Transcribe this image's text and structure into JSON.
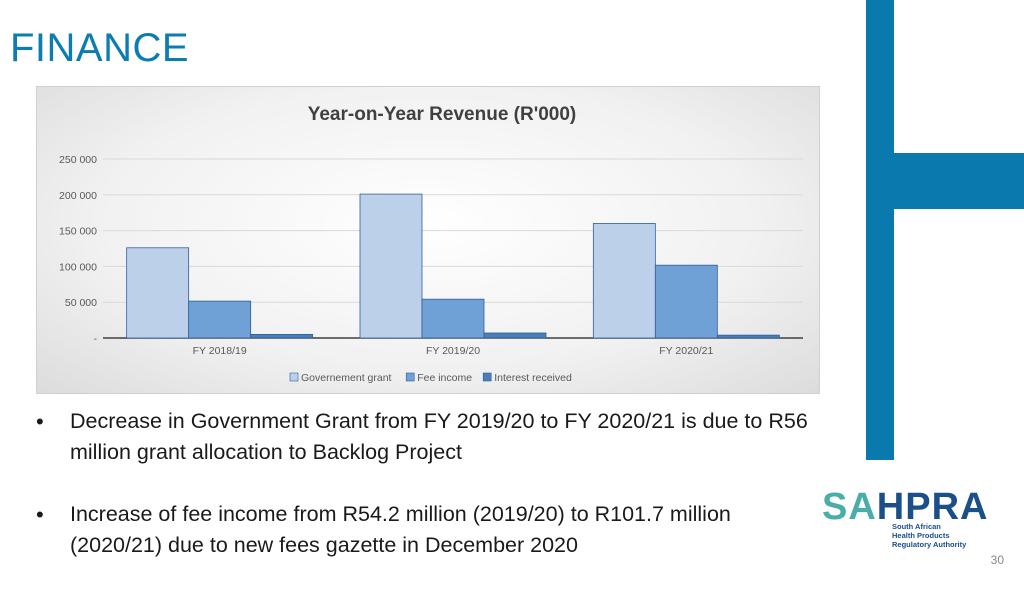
{
  "slide": {
    "title": "FINANCE",
    "page_number": "30"
  },
  "bullets": [
    "Decrease in Government Grant from FY 2019/20 to FY 2020/21 is due to R56 million grant allocation to Backlog Project",
    "Increase of fee income from R54.2 million (2019/20) to R101.7 million (2020/21) due to new fees gazette in December 2020"
  ],
  "logo": {
    "part1": "SA",
    "part2": "HPRA",
    "line1": "South African",
    "line2": "Health Products",
    "line3": "Regulatory Authority"
  },
  "colors": {
    "brand_blue": "#0a79ad",
    "title_blue": "#0b7db0",
    "series": [
      "#bdd0ea",
      "#6fa0d6",
      "#4a7fb5"
    ]
  },
  "chart_data": {
    "type": "bar",
    "title": "Year-on-Year Revenue (R'000)",
    "categories": [
      "FY 2018/19",
      "FY 2019/20",
      "FY 2020/21"
    ],
    "series": [
      {
        "name": "Governement grant",
        "values": [
          126000,
          201000,
          160000
        ]
      },
      {
        "name": "Fee income",
        "values": [
          51500,
          54200,
          101700
        ]
      },
      {
        "name": "Interest received",
        "values": [
          5000,
          7000,
          4000
        ]
      }
    ],
    "yticks": [
      "-",
      "50 000",
      "100 000",
      "150 000",
      "200 000",
      "250 000"
    ],
    "ylim": [
      0,
      250000
    ],
    "grid": true,
    "legend_position": "bottom"
  }
}
